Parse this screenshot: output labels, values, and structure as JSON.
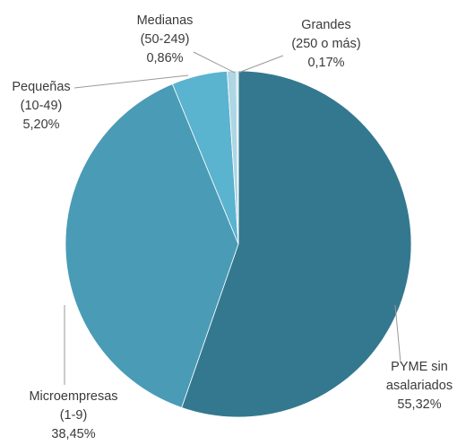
{
  "chart_data": {
    "type": "pie",
    "title": "",
    "slices": [
      {
        "label": [
          "PYME sin",
          "asalariados"
        ],
        "value": 55.32,
        "value_text": "55,32%",
        "color": "#34788f"
      },
      {
        "label": [
          "Microempresas",
          "(1-9)"
        ],
        "value": 38.45,
        "value_text": "38,45%",
        "color": "#4a9bb6"
      },
      {
        "label": [
          "Pequeñas",
          "(10-49)"
        ],
        "value": 5.2,
        "value_text": "5,20%",
        "color": "#5ab3cf"
      },
      {
        "label": [
          "Medianas",
          "(50-249)"
        ],
        "value": 0.86,
        "value_text": "0,86%",
        "color": "#aed6e4"
      },
      {
        "label": [
          "Grandes",
          "(250 o más)"
        ],
        "value": 0.17,
        "value_text": "0,17%",
        "color": "#c9e6ef"
      }
    ],
    "start_angle_deg": 0,
    "direction": "clockwise",
    "legend": "none",
    "data_labels": "outside with leader lines"
  }
}
